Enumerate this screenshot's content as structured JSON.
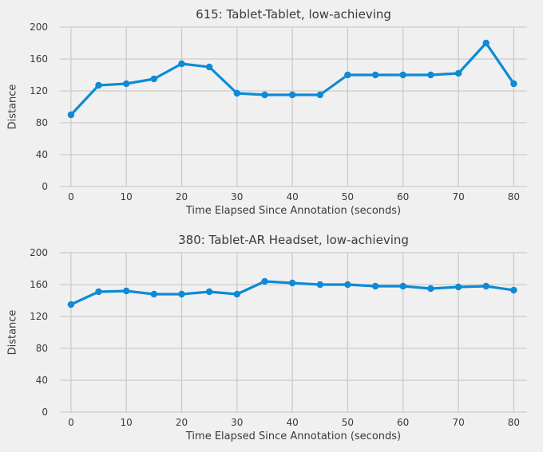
{
  "figure": {
    "background_color": "#f0f0f0",
    "grid_color": "#cbcbcb",
    "text_color": "#3a3a3a",
    "accent_color": "#0e8ad6"
  },
  "chart_data": [
    {
      "type": "line",
      "title": "615: Tablet-Tablet, low-achieving",
      "xlabel": "Time Elapsed Since Annotation (seconds)",
      "ylabel": "Distance",
      "xlim": [
        -2,
        82.4
      ],
      "ylim": [
        0,
        200
      ],
      "xticks": [
        0,
        10,
        20,
        30,
        40,
        50,
        60,
        70,
        80
      ],
      "yticks": [
        0,
        40,
        80,
        120,
        160,
        200
      ],
      "grid": true,
      "legend": "none",
      "series": [
        {
          "name": "distance",
          "color": "#0e8ad6",
          "marker": "circle",
          "x": [
            0,
            5,
            10,
            15,
            20,
            25,
            30,
            35,
            40,
            45,
            50,
            55,
            60,
            65,
            70,
            75,
            80
          ],
          "y": [
            90,
            127,
            129,
            135,
            154,
            150,
            117,
            115,
            115,
            115,
            140,
            140,
            140,
            140,
            142,
            180,
            129
          ]
        }
      ]
    },
    {
      "type": "line",
      "title": "380: Tablet-AR Headset, low-achieving",
      "xlabel": "Time Elapsed Since Annotation (seconds)",
      "ylabel": "Distance",
      "xlim": [
        -2,
        82.4
      ],
      "ylim": [
        0,
        200
      ],
      "xticks": [
        0,
        10,
        20,
        30,
        40,
        50,
        60,
        70,
        80
      ],
      "yticks": [
        0,
        40,
        80,
        120,
        160,
        200
      ],
      "grid": true,
      "legend": "none",
      "series": [
        {
          "name": "distance",
          "color": "#0e8ad6",
          "marker": "circle",
          "x": [
            0,
            5,
            10,
            15,
            20,
            25,
            30,
            35,
            40,
            45,
            50,
            55,
            60,
            65,
            70,
            75,
            80
          ],
          "y": [
            135,
            151,
            152,
            148,
            148,
            151,
            148,
            164,
            162,
            160,
            160,
            158,
            158,
            155,
            157,
            158,
            153
          ]
        }
      ]
    }
  ]
}
